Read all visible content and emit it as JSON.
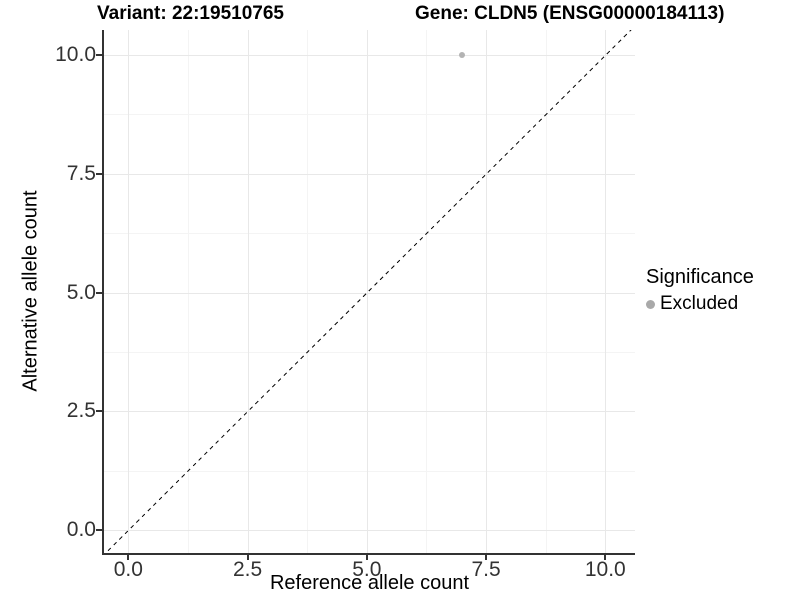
{
  "page": {
    "background": "#ffffff"
  },
  "chart_data": {
    "type": "scatter",
    "titles": {
      "left": "Variant: 22:19510765",
      "right": "Gene: CLDN5 (ENSG00000184113)"
    },
    "xlabel": "Reference allele count",
    "ylabel": "Alternative allele count",
    "x_ticks": {
      "values": [
        0,
        2.5,
        5,
        7.5,
        10
      ],
      "labels": [
        "0.0",
        "2.5",
        "5.0",
        "7.5",
        "10.0"
      ]
    },
    "y_ticks": {
      "values": [
        0,
        2.5,
        5,
        7.5,
        10
      ],
      "labels": [
        "0.0",
        "2.5",
        "5.0",
        "7.5",
        "10.0"
      ]
    },
    "xlim": [
      -0.55,
      10.65
    ],
    "ylim": [
      -0.55,
      10.65
    ],
    "grid": {
      "major": true,
      "minor": true,
      "major_color": "#e8e8e8",
      "minor_color": "#f4f4f4"
    },
    "identity_line": {
      "style": "dashed",
      "color": "#000000",
      "slope": 1,
      "intercept": 0
    },
    "series": [
      {
        "name": "Excluded",
        "color": "#b3b3b3",
        "points": [
          [
            7,
            10
          ]
        ]
      }
    ],
    "legend": {
      "title": "Significance",
      "position": "right",
      "items": [
        {
          "label": "Excluded",
          "color": "#a9a9a9"
        }
      ]
    },
    "colors": {
      "axis": "#333333",
      "tick_label": "#333333",
      "title": "#000000"
    }
  }
}
